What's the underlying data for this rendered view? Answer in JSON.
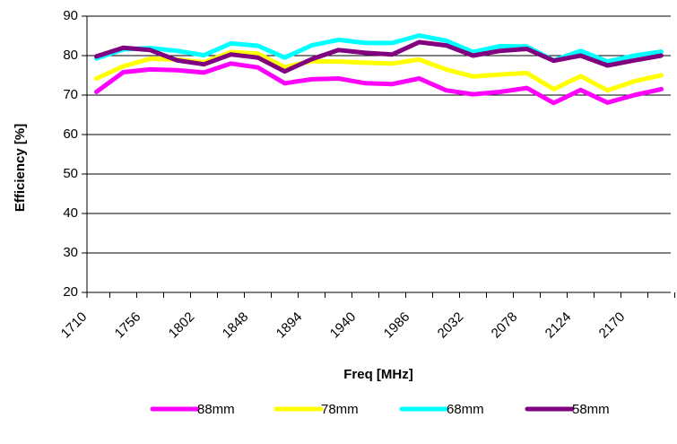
{
  "chart_data": {
    "type": "line",
    "title": "",
    "xlabel": "Freq [MHz]",
    "ylabel": "Efficiency [%]",
    "ylim": [
      20,
      90
    ],
    "yticks": [
      20,
      30,
      40,
      50,
      60,
      70,
      80,
      90
    ],
    "grid": "horizontal",
    "legend_position": "bottom",
    "categories": [
      "1710",
      "1733",
      "1756",
      "1779",
      "1802",
      "1825",
      "1848",
      "1871",
      "1894",
      "1917",
      "1940",
      "1963",
      "1986",
      "2009",
      "2032",
      "2055",
      "2078",
      "2101",
      "2124",
      "2147",
      "2170",
      "2193"
    ],
    "x_tick_labels": [
      "1710",
      "1756",
      "1802",
      "1848",
      "1894",
      "1940",
      "1986",
      "2032",
      "2078",
      "2124",
      "2170"
    ],
    "series": [
      {
        "name": "88mm",
        "color": "#ff00ff",
        "values": [
          70.8,
          75.8,
          76.5,
          76.3,
          75.7,
          78.0,
          77.0,
          73.0,
          74.0,
          74.2,
          73.0,
          72.8,
          74.2,
          71.2,
          70.2,
          70.8,
          71.8,
          68.0,
          71.3,
          68.1,
          70.0,
          71.5
        ]
      },
      {
        "name": "78mm",
        "color": "#ffff00",
        "values": [
          74.2,
          77.3,
          79.2,
          79.0,
          78.3,
          80.9,
          80.5,
          77.1,
          78.6,
          78.5,
          78.2,
          78.0,
          79.0,
          76.5,
          74.7,
          75.2,
          75.6,
          71.5,
          74.8,
          71.2,
          73.5,
          75.0
        ]
      },
      {
        "name": "68mm",
        "color": "#00ffff",
        "values": [
          79.3,
          81.6,
          81.9,
          81.2,
          80.1,
          83.1,
          82.5,
          79.5,
          82.6,
          84.0,
          83.2,
          83.2,
          85.1,
          83.8,
          80.9,
          82.4,
          82.3,
          78.8,
          81.2,
          78.5,
          80.0,
          81.0
        ]
      },
      {
        "name": "58mm",
        "color": "#800080",
        "values": [
          79.8,
          82.0,
          81.4,
          78.8,
          77.8,
          80.3,
          79.5,
          76.0,
          79.1,
          81.4,
          80.7,
          80.3,
          83.4,
          82.6,
          80.0,
          81.2,
          81.7,
          78.7,
          80.0,
          77.5,
          78.8,
          80.0
        ]
      }
    ]
  }
}
